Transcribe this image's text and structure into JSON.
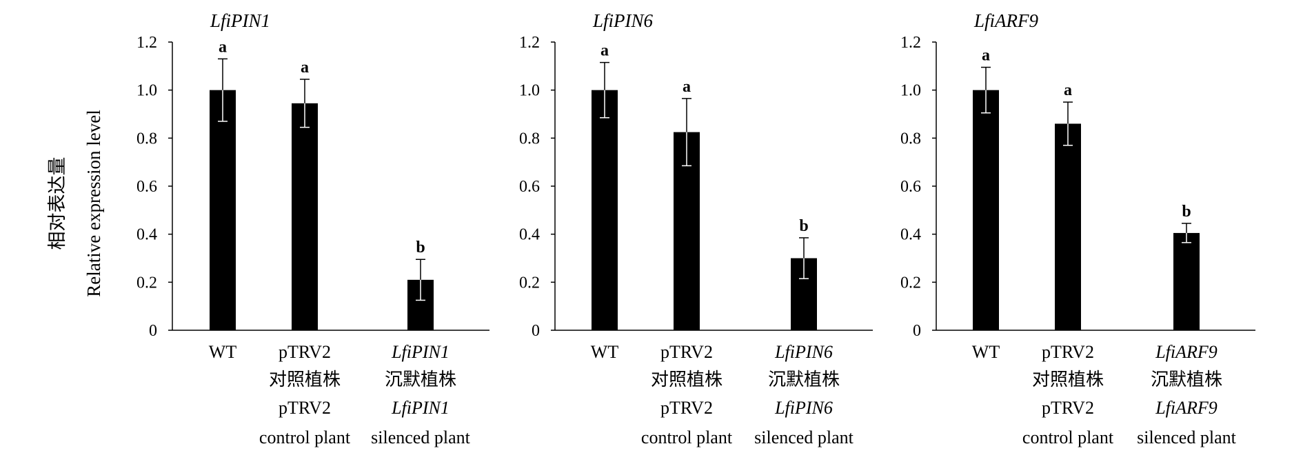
{
  "y_axis_label": {
    "line1": "相对表达量",
    "line2": "Relative expression level"
  },
  "chart_data": [
    {
      "type": "bar",
      "title": "LfiPIN1",
      "ylim": [
        0,
        1.2
      ],
      "yticks": [
        "0",
        "0.2",
        "0.4",
        "0.6",
        "0.8",
        "1.0",
        "1.2"
      ],
      "categories": [
        {
          "lines": [
            "WT"
          ],
          "italic": [
            false
          ]
        },
        {
          "lines": [
            "pTRV2",
            "对照植株",
            "pTRV2",
            "control plant"
          ],
          "italic": [
            false,
            false,
            false,
            false
          ]
        },
        {
          "lines": [
            "LfiPIN1",
            "沉默植株",
            "LfiPIN1",
            "silenced plant"
          ],
          "italic": [
            true,
            false,
            true,
            false
          ]
        }
      ],
      "values": [
        1.0,
        0.945,
        0.21
      ],
      "errors": [
        0.13,
        0.1,
        0.085
      ],
      "significance": [
        "a",
        "a",
        "b"
      ]
    },
    {
      "type": "bar",
      "title": "LfiPIN6",
      "ylim": [
        0,
        1.2
      ],
      "yticks": [
        "0",
        "0.2",
        "0.4",
        "0.6",
        "0.8",
        "1.0",
        "1.2"
      ],
      "categories": [
        {
          "lines": [
            "WT"
          ],
          "italic": [
            false
          ]
        },
        {
          "lines": [
            "pTRV2",
            "对照植株",
            "pTRV2",
            "control plant"
          ],
          "italic": [
            false,
            false,
            false,
            false
          ]
        },
        {
          "lines": [
            "LfiPIN6",
            "沉默植株",
            "LfiPIN6",
            "silenced plant"
          ],
          "italic": [
            true,
            false,
            true,
            false
          ]
        }
      ],
      "values": [
        1.0,
        0.825,
        0.3
      ],
      "errors": [
        0.115,
        0.14,
        0.085
      ],
      "significance": [
        "a",
        "a",
        "b"
      ]
    },
    {
      "type": "bar",
      "title": "LfiARF9",
      "ylim": [
        0,
        1.2
      ],
      "yticks": [
        "0",
        "0.2",
        "0.4",
        "0.6",
        "0.8",
        "1.0",
        "1.2"
      ],
      "categories": [
        {
          "lines": [
            "WT"
          ],
          "italic": [
            false
          ]
        },
        {
          "lines": [
            "pTRV2",
            "对照植株",
            "pTRV2",
            "control plant"
          ],
          "italic": [
            false,
            false,
            false,
            false
          ]
        },
        {
          "lines": [
            "LfiARF9",
            "沉默植株",
            "LfiARF9",
            "silenced plant"
          ],
          "italic": [
            true,
            false,
            true,
            false
          ]
        }
      ],
      "values": [
        1.0,
        0.86,
        0.405
      ],
      "errors": [
        0.095,
        0.09,
        0.04
      ],
      "significance": [
        "a",
        "a",
        "b"
      ]
    }
  ]
}
